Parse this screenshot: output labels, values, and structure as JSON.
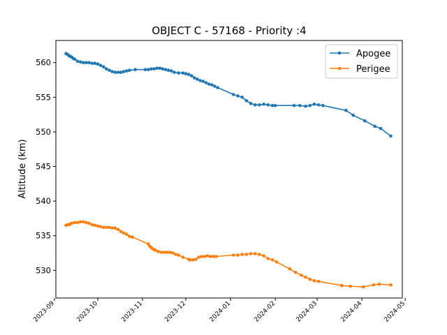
{
  "chart_data": {
    "type": "line",
    "title": "OBJECT C - 57168 - Priority :4",
    "xlabel": "",
    "ylabel": "Altitude (km)",
    "xlim": [
      "2023-09-02",
      "2024-04-29"
    ],
    "ylim": [
      526.0,
      563.2
    ],
    "x_ticks": [
      "2023-09",
      "2023-10",
      "2023-11",
      "2023-12",
      "2024-01",
      "2024-02",
      "2024-03",
      "2024-04",
      "2024-05"
    ],
    "y_ticks": [
      530,
      535,
      540,
      545,
      550,
      555,
      560
    ],
    "grid": false,
    "legend_position": "top-right",
    "series": [
      {
        "name": "Apogee",
        "color": "#1f77b4",
        "x": [
          "2023-09-09",
          "2023-09-10",
          "2023-09-11",
          "2023-09-12",
          "2023-09-13",
          "2023-09-14",
          "2023-09-15",
          "2023-09-17",
          "2023-09-19",
          "2023-09-21",
          "2023-09-23",
          "2023-09-25",
          "2023-09-27",
          "2023-09-29",
          "2023-10-01",
          "2023-10-03",
          "2023-10-05",
          "2023-10-07",
          "2023-10-09",
          "2023-10-11",
          "2023-10-13",
          "2023-10-15",
          "2023-10-17",
          "2023-10-19",
          "2023-10-21",
          "2023-10-23",
          "2023-10-27",
          "2023-11-03",
          "2023-11-05",
          "2023-11-07",
          "2023-11-09",
          "2023-11-11",
          "2023-11-13",
          "2023-11-15",
          "2023-11-17",
          "2023-11-19",
          "2023-11-21",
          "2023-11-23",
          "2023-11-26",
          "2023-11-29",
          "2023-12-01",
          "2023-12-03",
          "2023-12-05",
          "2023-12-07",
          "2023-12-09",
          "2023-12-11",
          "2023-12-13",
          "2023-12-15",
          "2023-12-17",
          "2023-12-19",
          "2023-12-21",
          "2023-12-23",
          "2024-01-03",
          "2024-01-06",
          "2024-01-09",
          "2024-01-12",
          "2024-01-15",
          "2024-01-18",
          "2024-01-21",
          "2024-01-24",
          "2024-01-27",
          "2024-01-30",
          "2024-02-01",
          "2024-02-14",
          "2024-02-18",
          "2024-02-22",
          "2024-02-25",
          "2024-02-28",
          "2024-03-02",
          "2024-03-05",
          "2024-03-21",
          "2024-03-26",
          "2024-04-03",
          "2024-04-10",
          "2024-04-14",
          "2024-04-21"
        ],
        "values": [
          561.3,
          561.2,
          561.0,
          560.9,
          560.8,
          560.6,
          560.5,
          560.2,
          560.1,
          560.0,
          560.0,
          560.0,
          559.9,
          559.9,
          559.8,
          559.6,
          559.4,
          559.1,
          558.9,
          558.7,
          558.6,
          558.6,
          558.6,
          558.7,
          558.8,
          558.9,
          559.0,
          559.0,
          559.0,
          559.1,
          559.1,
          559.2,
          559.2,
          559.1,
          559.0,
          558.9,
          558.8,
          558.6,
          558.5,
          558.5,
          558.4,
          558.3,
          558.1,
          557.8,
          557.6,
          557.4,
          557.3,
          557.1,
          556.9,
          556.8,
          556.6,
          556.4,
          555.4,
          555.2,
          555.0,
          554.5,
          554.1,
          553.9,
          553.9,
          554.0,
          553.9,
          553.8,
          553.8,
          553.8,
          553.8,
          553.7,
          553.8,
          554.0,
          553.9,
          553.8,
          553.1,
          552.4,
          551.6,
          550.8,
          550.5,
          549.4
        ]
      },
      {
        "name": "Perigee",
        "color": "#ff7f0e",
        "x": [
          "2023-09-09",
          "2023-09-10",
          "2023-09-11",
          "2023-09-12",
          "2023-09-13",
          "2023-09-15",
          "2023-09-17",
          "2023-09-19",
          "2023-09-21",
          "2023-09-23",
          "2023-09-25",
          "2023-09-27",
          "2023-09-29",
          "2023-10-01",
          "2023-10-03",
          "2023-10-05",
          "2023-10-07",
          "2023-10-09",
          "2023-10-11",
          "2023-10-13",
          "2023-10-15",
          "2023-10-17",
          "2023-10-19",
          "2023-10-21",
          "2023-10-23",
          "2023-10-25",
          "2023-11-05",
          "2023-11-06",
          "2023-11-07",
          "2023-11-08",
          "2023-11-09",
          "2023-11-10",
          "2023-11-12",
          "2023-11-14",
          "2023-11-16",
          "2023-11-18",
          "2023-11-20",
          "2023-11-22",
          "2023-11-24",
          "2023-11-26",
          "2023-11-29",
          "2023-12-03",
          "2023-12-04",
          "2023-12-06",
          "2023-12-08",
          "2023-12-10",
          "2023-12-12",
          "2023-12-14",
          "2023-12-16",
          "2023-12-18",
          "2023-12-20",
          "2023-12-22",
          "2024-01-03",
          "2024-01-06",
          "2024-01-09",
          "2024-01-12",
          "2024-01-15",
          "2024-01-18",
          "2024-01-21",
          "2024-01-24",
          "2024-01-27",
          "2024-01-30",
          "2024-02-02",
          "2024-02-11",
          "2024-02-15",
          "2024-02-19",
          "2024-02-22",
          "2024-02-25",
          "2024-02-28",
          "2024-03-02",
          "2024-03-18",
          "2024-03-24",
          "2024-04-02",
          "2024-04-09",
          "2024-04-13",
          "2024-04-21"
        ],
        "values": [
          536.5,
          536.6,
          536.6,
          536.7,
          536.8,
          536.9,
          536.9,
          537.0,
          537.0,
          536.9,
          536.8,
          536.6,
          536.5,
          536.4,
          536.3,
          536.2,
          536.2,
          536.2,
          536.1,
          536.1,
          535.9,
          535.6,
          535.4,
          535.2,
          534.9,
          534.8,
          533.8,
          533.5,
          533.3,
          533.1,
          533.0,
          532.9,
          532.7,
          532.6,
          532.6,
          532.6,
          532.6,
          532.5,
          532.3,
          532.2,
          531.9,
          531.6,
          531.5,
          531.5,
          531.6,
          531.9,
          532.0,
          532.0,
          532.1,
          532.0,
          532.0,
          532.0,
          532.2,
          532.2,
          532.3,
          532.3,
          532.4,
          532.4,
          532.3,
          532.1,
          531.7,
          531.5,
          531.2,
          530.2,
          529.7,
          529.3,
          529.0,
          528.7,
          528.5,
          528.4,
          527.8,
          527.7,
          527.6,
          527.9,
          528.0,
          527.9
        ]
      }
    ]
  }
}
